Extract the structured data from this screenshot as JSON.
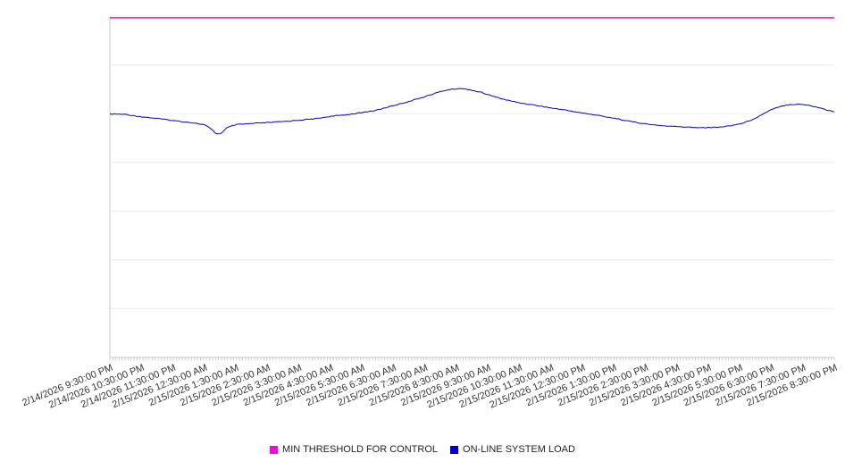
{
  "chart_data": {
    "type": "line",
    "title": "",
    "xlabel": "",
    "ylabel": "",
    "ylim": [
      0,
      100
    ],
    "y_gridline_divisions": 7,
    "y_tick_labels_visible": false,
    "grid": true,
    "legend_position": "bottom-center",
    "x_tick_labels": [
      "2/14/2026 9:30:00 PM",
      "2/14/2026 10:30:00 PM",
      "2/14/2026 11:30:00 PM",
      "2/15/2026 12:30:00 AM",
      "2/15/2026 1:30:00 AM",
      "2/15/2026 2:30:00 AM",
      "2/15/2026 3:30:00 AM",
      "2/15/2026 4:30:00 AM",
      "2/15/2026 5:30:00 AM",
      "2/15/2026 6:30:00 AM",
      "2/15/2026 7:30:00 AM",
      "2/15/2026 8:30:00 AM",
      "2/15/2026 9:30:00 AM",
      "2/15/2026 10:30:00 AM",
      "2/15/2026 11:30:00 AM",
      "2/15/2026 12:30:00 PM",
      "2/15/2026 1:30:00 PM",
      "2/15/2026 2:30:00 PM",
      "2/15/2026 3:30:00 PM",
      "2/15/2026 4:30:00 PM",
      "2/15/2026 5:30:00 PM",
      "2/15/2026 6:30:00 PM",
      "2/15/2026 7:30:00 PM",
      "2/15/2026 8:30:00 PM"
    ],
    "series": [
      {
        "name": "MIN THRESHOLD FOR CONTROL",
        "color": "#e80ed8",
        "style": "threshold-line",
        "value": 99.5
      },
      {
        "name": "ON-LINE SYSTEM LOAD",
        "color": "#0000cc",
        "style": "line",
        "points": [
          [
            0,
            71.3
          ],
          [
            0.5,
            71.2
          ],
          [
            1,
            70.5
          ],
          [
            1.5,
            70.0
          ],
          [
            2,
            69.4
          ],
          [
            2.5,
            68.9
          ],
          [
            3,
            68.2
          ],
          [
            3.2,
            67.0
          ],
          [
            3.4,
            65.4
          ],
          [
            3.55,
            65.7
          ],
          [
            3.7,
            67.2
          ],
          [
            4,
            68.2
          ],
          [
            4.5,
            68.5
          ],
          [
            5,
            68.8
          ],
          [
            5.5,
            69.1
          ],
          [
            6,
            69.5
          ],
          [
            6.5,
            69.9
          ],
          [
            7,
            70.6
          ],
          [
            7.5,
            71.1
          ],
          [
            8,
            71.7
          ],
          [
            8.5,
            72.5
          ],
          [
            9,
            73.8
          ],
          [
            9.5,
            75.0
          ],
          [
            10,
            76.4
          ],
          [
            10.5,
            77.9
          ],
          [
            10.8,
            78.5
          ],
          [
            11.1,
            78.8
          ],
          [
            11.4,
            78.5
          ],
          [
            11.8,
            77.6
          ],
          [
            12.2,
            76.4
          ],
          [
            12.6,
            75.4
          ],
          [
            13,
            74.6
          ],
          [
            13.5,
            73.9
          ],
          [
            14,
            73.1
          ],
          [
            14.5,
            72.4
          ],
          [
            15,
            71.6
          ],
          [
            15.5,
            70.9
          ],
          [
            16,
            70.1
          ],
          [
            16.5,
            69.2
          ],
          [
            17,
            68.4
          ],
          [
            17.5,
            67.9
          ],
          [
            18,
            67.6
          ],
          [
            18.5,
            67.4
          ],
          [
            19,
            67.3
          ],
          [
            19.5,
            67.6
          ],
          [
            20,
            68.4
          ],
          [
            20.3,
            69.3
          ],
          [
            20.6,
            70.6
          ],
          [
            21,
            72.7
          ],
          [
            21.3,
            73.6
          ],
          [
            21.6,
            74.1
          ],
          [
            21.9,
            74.2
          ],
          [
            22.2,
            73.8
          ],
          [
            22.5,
            73.2
          ],
          [
            23,
            71.9
          ]
        ]
      }
    ]
  },
  "colors": {
    "background": "#ffffff",
    "gridline": "#ececec",
    "axis": "#c9c9c9",
    "minor_tick": "#b5b5b5",
    "axis_label_text": "#333333"
  }
}
